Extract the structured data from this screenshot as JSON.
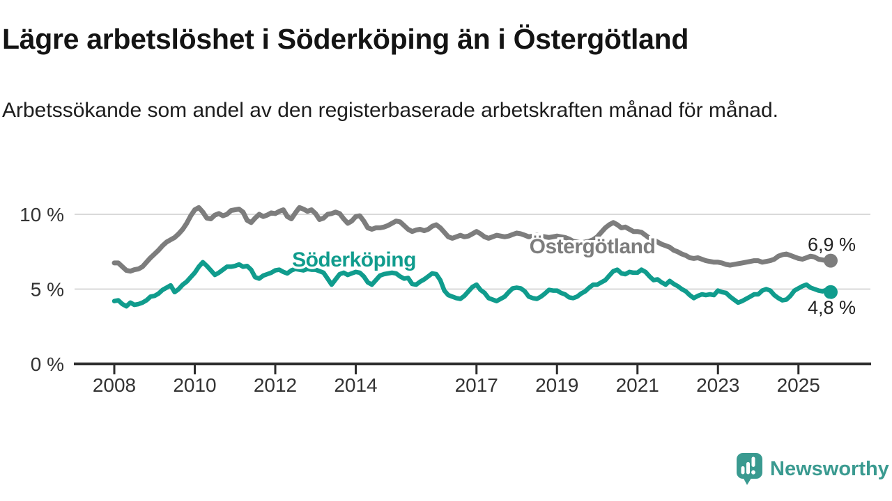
{
  "title": "Lägre arbetslöshet i Söderköping än i Östergötland",
  "subtitle": "Arbetssökande som andel av den registerbaserade arbetskraften månad för månad.",
  "chart_data": {
    "type": "line",
    "title": "Lägre arbetslöshet i Söderköping än i Östergötland",
    "subtitle": "Arbetssökande som andel av den registerbaserade arbetskraften månad för månad.",
    "xlabel": "",
    "ylabel": "",
    "unit": "%",
    "grid": true,
    "legend_position": "inline-labels",
    "xlim": [
      2007.03,
      2026.77
    ],
    "ylim": [
      0,
      11
    ],
    "x_tick_labels": [
      "2008",
      "2010",
      "2012",
      "2014",
      "2017",
      "2019",
      "2021",
      "2023",
      "2025"
    ],
    "x_tick_values": [
      2008,
      2010,
      2012,
      2014,
      2017,
      2019,
      2021,
      2023,
      2025
    ],
    "y_tick_labels": [
      "10 %",
      "5 %",
      "0 %"
    ],
    "y_tick_values": [
      10,
      5,
      0
    ],
    "x_start": 2008.0,
    "x_step": 0.1,
    "series": [
      {
        "name": "Östergötland",
        "color": "#7d7d7d",
        "end_label": "6,9 %",
        "end_value": 6.9,
        "values": [
          6.75,
          6.75,
          6.5,
          6.25,
          6.2,
          6.3,
          6.35,
          6.5,
          6.8,
          7.1,
          7.35,
          7.6,
          7.9,
          8.15,
          8.3,
          8.45,
          8.7,
          9.0,
          9.4,
          9.9,
          10.3,
          10.45,
          10.15,
          9.75,
          9.7,
          9.95,
          10.05,
          9.9,
          10.0,
          10.25,
          10.3,
          10.35,
          10.15,
          9.6,
          9.45,
          9.75,
          10.0,
          9.85,
          9.95,
          10.1,
          10.05,
          10.2,
          10.3,
          9.85,
          9.7,
          10.1,
          10.45,
          10.35,
          10.2,
          10.3,
          10.05,
          9.65,
          9.75,
          10.0,
          10.05,
          10.15,
          10.05,
          9.7,
          9.4,
          9.55,
          9.85,
          9.9,
          9.55,
          9.1,
          9.0,
          9.1,
          9.1,
          9.15,
          9.25,
          9.4,
          9.55,
          9.5,
          9.25,
          9.0,
          8.85,
          8.95,
          9.0,
          8.9,
          9.0,
          9.2,
          9.3,
          9.1,
          8.8,
          8.5,
          8.4,
          8.5,
          8.6,
          8.5,
          8.55,
          8.7,
          8.85,
          8.7,
          8.5,
          8.4,
          8.5,
          8.6,
          8.55,
          8.5,
          8.55,
          8.65,
          8.75,
          8.7,
          8.6,
          8.5,
          8.55,
          8.6,
          8.55,
          8.5,
          8.45,
          8.5,
          8.55,
          8.5,
          8.45,
          8.35,
          8.2,
          8.15,
          8.1,
          8.15,
          8.2,
          8.3,
          8.5,
          8.8,
          9.1,
          9.3,
          9.45,
          9.3,
          9.1,
          9.15,
          9.0,
          8.85,
          8.85,
          8.8,
          8.6,
          8.4,
          8.3,
          8.15,
          8.0,
          7.9,
          7.8,
          7.6,
          7.5,
          7.35,
          7.25,
          7.1,
          7.05,
          7.1,
          7.0,
          6.9,
          6.85,
          6.8,
          6.8,
          6.75,
          6.65,
          6.6,
          6.65,
          6.7,
          6.75,
          6.8,
          6.85,
          6.9,
          6.9,
          6.8,
          6.85,
          6.9,
          7.0,
          7.2,
          7.3,
          7.35,
          7.25,
          7.15,
          7.05,
          7.0,
          7.1,
          7.2,
          7.15,
          7.0,
          6.95,
          6.9,
          6.9
        ]
      },
      {
        "name": "Söderköping",
        "color": "#109c8d",
        "end_label": "4,8 %",
        "end_value": 4.8,
        "values": [
          4.2,
          4.25,
          4.0,
          3.85,
          4.1,
          3.95,
          4.0,
          4.1,
          4.25,
          4.5,
          4.55,
          4.7,
          4.95,
          5.1,
          5.25,
          4.8,
          5.0,
          5.3,
          5.5,
          5.8,
          6.1,
          6.5,
          6.8,
          6.55,
          6.25,
          5.95,
          6.1,
          6.3,
          6.5,
          6.5,
          6.55,
          6.65,
          6.5,
          6.55,
          6.3,
          5.8,
          5.7,
          5.9,
          6.0,
          6.1,
          6.25,
          6.3,
          6.15,
          6.05,
          6.25,
          6.35,
          6.3,
          6.25,
          6.35,
          6.3,
          6.3,
          6.2,
          6.1,
          5.7,
          5.3,
          5.65,
          6.0,
          6.1,
          5.95,
          6.05,
          6.15,
          6.1,
          5.85,
          5.45,
          5.3,
          5.6,
          5.9,
          6.0,
          6.05,
          6.1,
          6.05,
          5.85,
          5.7,
          5.75,
          5.35,
          5.3,
          5.5,
          5.65,
          5.85,
          6.05,
          6.0,
          5.6,
          4.9,
          4.6,
          4.5,
          4.4,
          4.35,
          4.55,
          4.85,
          5.15,
          5.3,
          4.95,
          4.75,
          4.4,
          4.3,
          4.2,
          4.35,
          4.5,
          4.8,
          5.05,
          5.1,
          5.05,
          4.85,
          4.5,
          4.4,
          4.35,
          4.5,
          4.7,
          4.95,
          4.9,
          4.9,
          4.75,
          4.65,
          4.45,
          4.4,
          4.5,
          4.7,
          4.85,
          5.1,
          5.3,
          5.3,
          5.45,
          5.6,
          5.9,
          6.2,
          6.3,
          6.05,
          6.0,
          6.15,
          6.1,
          6.1,
          6.3,
          6.15,
          5.85,
          5.6,
          5.65,
          5.45,
          5.3,
          5.55,
          5.35,
          5.2,
          5.0,
          4.85,
          4.6,
          4.4,
          4.55,
          4.65,
          4.6,
          4.65,
          4.6,
          4.9,
          4.8,
          4.75,
          4.5,
          4.3,
          4.1,
          4.2,
          4.35,
          4.5,
          4.65,
          4.65,
          4.9,
          5.0,
          4.9,
          4.6,
          4.4,
          4.25,
          4.3,
          4.55,
          4.9,
          5.05,
          5.2,
          5.3,
          5.1,
          5.0,
          4.9,
          4.85,
          4.95,
          4.8
        ]
      }
    ]
  },
  "branding": {
    "logo_text": "Newsworthy",
    "logo_icon": "bar-chart-speech-bubble-icon",
    "logo_color": "#3a9a90"
  }
}
